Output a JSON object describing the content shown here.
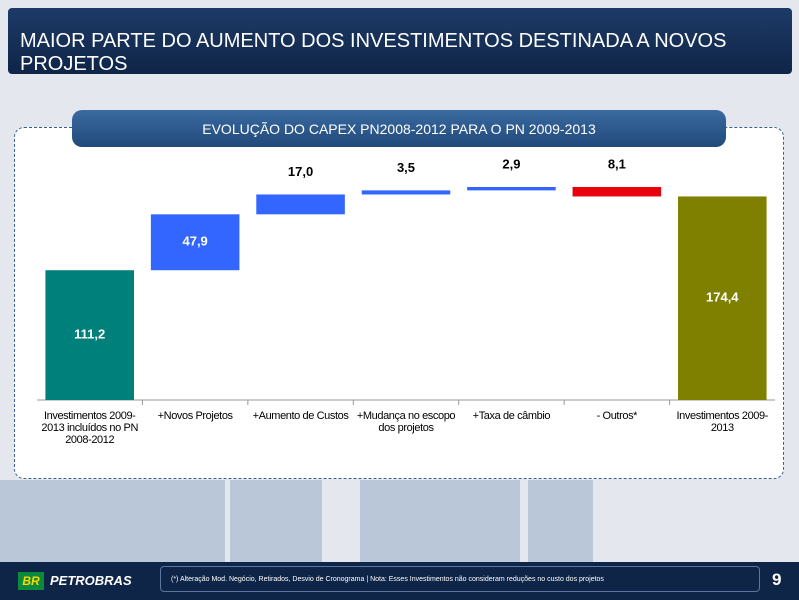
{
  "slide": {
    "title": "MAIOR PARTE DO AUMENTO DOS INVESTIMENTOS DESTINADA A NOVOS PROJETOS",
    "footnote": "(*) Alteração Mod. Negócio, Retirados, Desvio de Cronograma | Nota: Esses Investimentos não consideram reduções no custo dos projetos",
    "logo_mark": "BR",
    "logo_text": "PETROBRAS",
    "page": "9"
  },
  "chart_data": {
    "type": "waterfall",
    "title": "EVOLUÇÃO DO CAPEX PN2008-2012 PARA O PN 2009-2013",
    "categories": [
      "Investimentos 2009-2013 incluídos no PN 2008-2012",
      "+Novos Projetos",
      "+Aumento de Custos",
      "+Mudança no escopo dos projetos",
      "+Taxa de câmbio",
      "- Outros*",
      "Investimentos 2009-2013"
    ],
    "values": [
      111.2,
      47.9,
      17.0,
      3.5,
      2.9,
      -8.1,
      174.4
    ],
    "value_labels": [
      "111,2",
      "47,9",
      "17,0",
      "3,5",
      "2,9",
      "8,1",
      "174,4"
    ],
    "colors": [
      "#00807a",
      "#3366ff",
      "#3366ff",
      "#3366ff",
      "#3366ff",
      "#e8000b",
      "#808000"
    ]
  }
}
